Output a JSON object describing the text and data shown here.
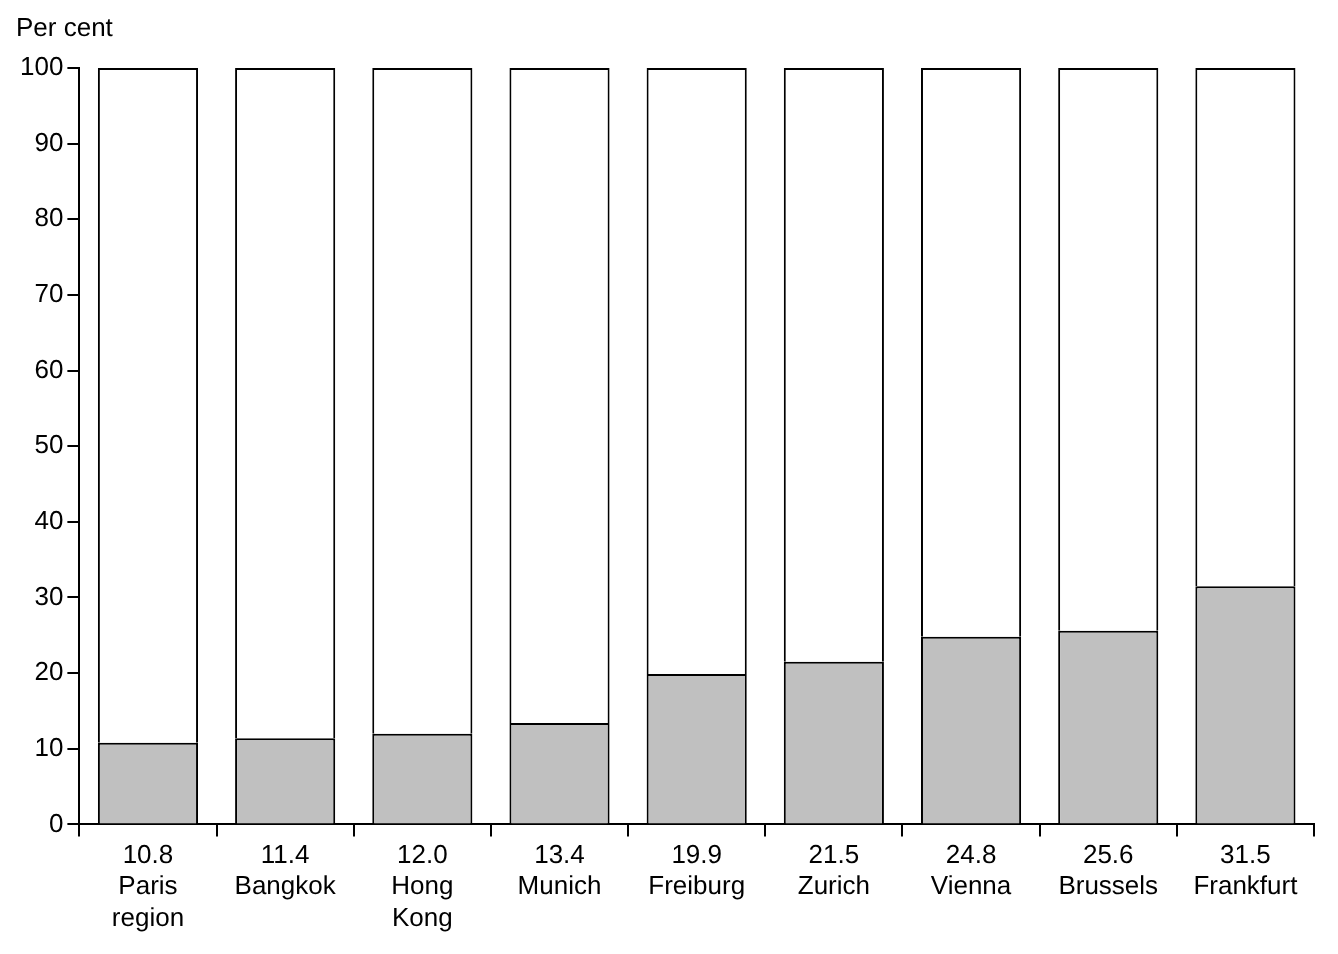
{
  "chart_data": {
    "type": "bar",
    "stacked": true,
    "ylabel": "Per cent",
    "categories": [
      "Paris region",
      "Bangkok",
      "Hong Kong",
      "Munich",
      "Freiburg",
      "Zurich",
      "Vienna",
      "Brussels",
      "Frankfurt"
    ],
    "series": [
      {
        "color": "#c0c0c0",
        "values": [
          10.8,
          11.4,
          12.0,
          13.4,
          19.9,
          21.5,
          24.8,
          25.6,
          31.5
        ],
        "value_labels": [
          "10.8",
          "11.4",
          "12.0",
          "13.4",
          "19.9",
          "21.5",
          "24.8",
          "25.6",
          "31.5"
        ]
      },
      {
        "color": "#ffffff",
        "values": [
          89.2,
          88.6,
          88.0,
          86.6,
          80.1,
          78.5,
          75.2,
          74.4,
          68.5
        ]
      }
    ],
    "ylim": [
      0,
      100
    ],
    "yticks": [
      0,
      10,
      20,
      30,
      40,
      50,
      60,
      70,
      80,
      90,
      100
    ],
    "grid": false,
    "legend": false
  }
}
